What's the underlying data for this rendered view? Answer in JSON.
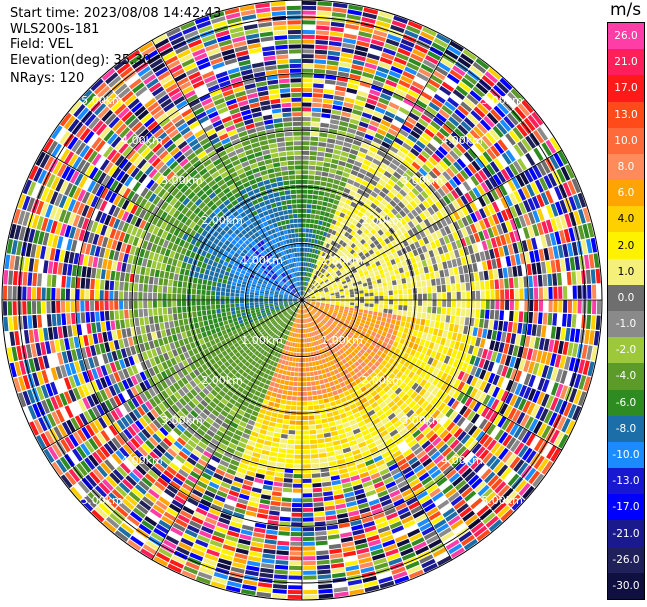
{
  "header": {
    "start_time": "Start time: 2023/08/08 14:42:43",
    "instrument": "WLS200s-181",
    "field": "Field: VEL",
    "elevation": "Elevation(deg): 35.30",
    "nrays": "NRays: 120"
  },
  "colorbar": {
    "unit": "m/s",
    "levels": [
      {
        "label": "26.0",
        "color": "#ff3da6"
      },
      {
        "label": "21.0",
        "color": "#ff1f5a"
      },
      {
        "label": "17.0",
        "color": "#ff1a1a"
      },
      {
        "label": "13.0",
        "color": "#ff4a1a"
      },
      {
        "label": "10.0",
        "color": "#ff6a3a"
      },
      {
        "label": "8.0",
        "color": "#ff8a5a"
      },
      {
        "label": "6.0",
        "color": "#ffa400"
      },
      {
        "label": "4.0",
        "color": "#ffd000"
      },
      {
        "label": "2.0",
        "color": "#fff200"
      },
      {
        "label": "1.0",
        "color": "#f5f07a"
      },
      {
        "label": "0.0",
        "color": "#6e6e6e"
      },
      {
        "label": "-1.0",
        "color": "#8a8a8a"
      },
      {
        "label": "-2.0",
        "color": "#9dc83a"
      },
      {
        "label": "-4.0",
        "color": "#5c9a2a"
      },
      {
        "label": "-6.0",
        "color": "#2e8b22"
      },
      {
        "label": "-8.0",
        "color": "#1c6ea8"
      },
      {
        "label": "-10.0",
        "color": "#1a8cff"
      },
      {
        "label": "-13.0",
        "color": "#1818d0"
      },
      {
        "label": "-17.0",
        "color": "#0000ff"
      },
      {
        "label": "-21.0",
        "color": "#1a1a8c"
      },
      {
        "label": "-26.0",
        "color": "#20205a"
      },
      {
        "label": "-30.0",
        "color": "#101040"
      }
    ]
  },
  "chart_data": {
    "type": "heatmap",
    "title": "",
    "projection": "polar PPI",
    "field": "VEL",
    "units": "m/s",
    "elevation_deg": 35.3,
    "n_rays": 120,
    "range_rings_km": [
      1.0,
      2.0,
      3.0,
      4.0,
      5.0
    ],
    "range_ring_labels": [
      "1.00km",
      "2.00km",
      "3.00km",
      "4.00km",
      "5.00km"
    ],
    "max_range_km": 5.3,
    "spoke_angles_deg": [
      0,
      30,
      60,
      90,
      120,
      150,
      180,
      210,
      240,
      270,
      300,
      330
    ],
    "regions": [
      {
        "desc": "approaching (negative) flow west/north-west",
        "approx_velocity": [
          -10,
          -4
        ],
        "azimuth_center_deg": 315,
        "range_km": [
          0,
          2.2
        ]
      },
      {
        "desc": "receding (positive) flow south-east",
        "approx_velocity": [
          6,
          10
        ],
        "azimuth_center_deg": 135,
        "range_km": [
          0,
          2.2
        ]
      },
      {
        "desc": "near-zero band north-east",
        "approx_velocity": [
          0,
          2
        ],
        "azimuth_center_deg": 60,
        "range_km": [
          0,
          3.0
        ]
      },
      {
        "desc": "noise (random velocities) beyond ~3 km",
        "approx_velocity": [
          -30,
          26
        ],
        "range_km": [
          3.0,
          5.3
        ]
      }
    ]
  }
}
